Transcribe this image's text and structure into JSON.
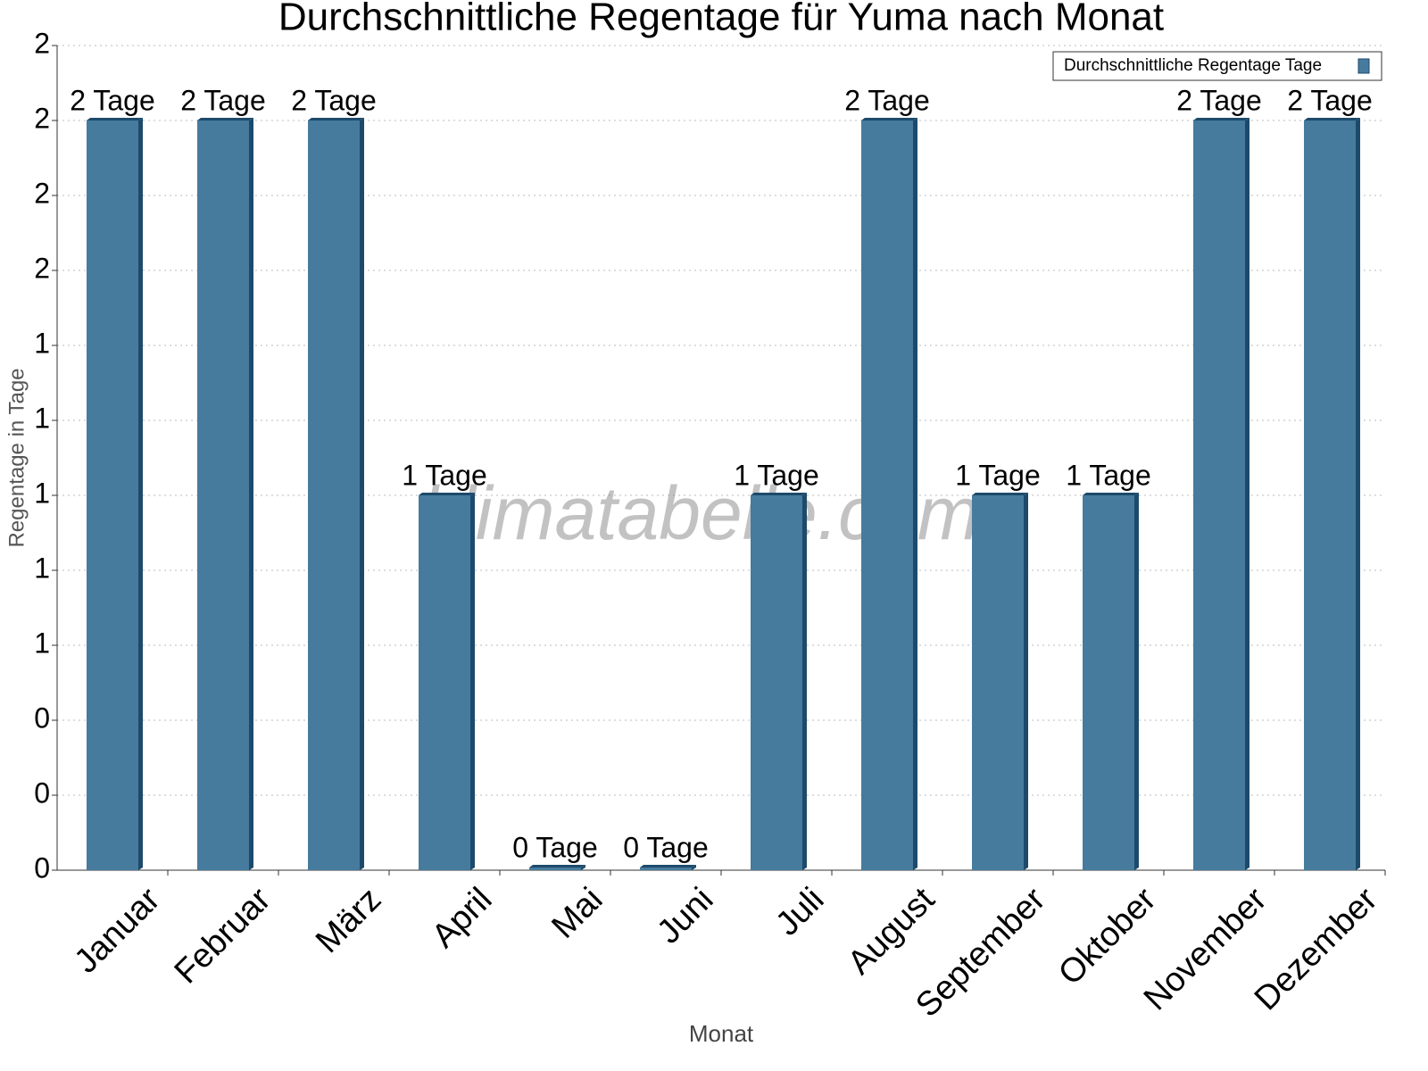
{
  "chart_data": {
    "type": "bar",
    "title": "Durchschnittliche Regentage für Yuma nach Monat",
    "x_label": "Monat",
    "y_label": "Regentage in Tage",
    "watermark": "klimatabelle.com",
    "categories": [
      "Januar",
      "Februar",
      "März",
      "April",
      "Mai",
      "Juni",
      "Juli",
      "August",
      "September",
      "Oktober",
      "November",
      "Dezember"
    ],
    "series": [
      {
        "name": "Durchschnittliche Regentage Tage",
        "color": "#467b9d",
        "values": [
          2,
          2,
          2,
          1,
          0,
          0,
          1,
          2,
          1,
          1,
          2,
          2
        ],
        "value_labels": [
          "2 Tage",
          "2 Tage",
          "2 Tage",
          "1 Tage",
          "0 Tage",
          "0 Tage",
          "1 Tage",
          "2 Tage",
          "1 Tage",
          "1 Tage",
          "2 Tage",
          "2 Tage"
        ]
      }
    ],
    "ylim": [
      0,
      2.2
    ],
    "yticks": [
      0,
      {
        "value": 0.2,
        "label": "0"
      },
      {
        "value": 0.4,
        "label": "0"
      },
      {
        "value": 0.6,
        "label": "1"
      },
      {
        "value": 0.8,
        "label": "1"
      },
      1,
      {
        "value": 1.2,
        "label": "1"
      },
      {
        "value": 1.4,
        "label": "1"
      },
      {
        "value": 1.6,
        "label": "2"
      },
      {
        "value": 1.8,
        "label": "2"
      },
      2,
      {
        "value": 2.2,
        "label": "2"
      }
    ],
    "grid": true,
    "legend": "upper right"
  }
}
